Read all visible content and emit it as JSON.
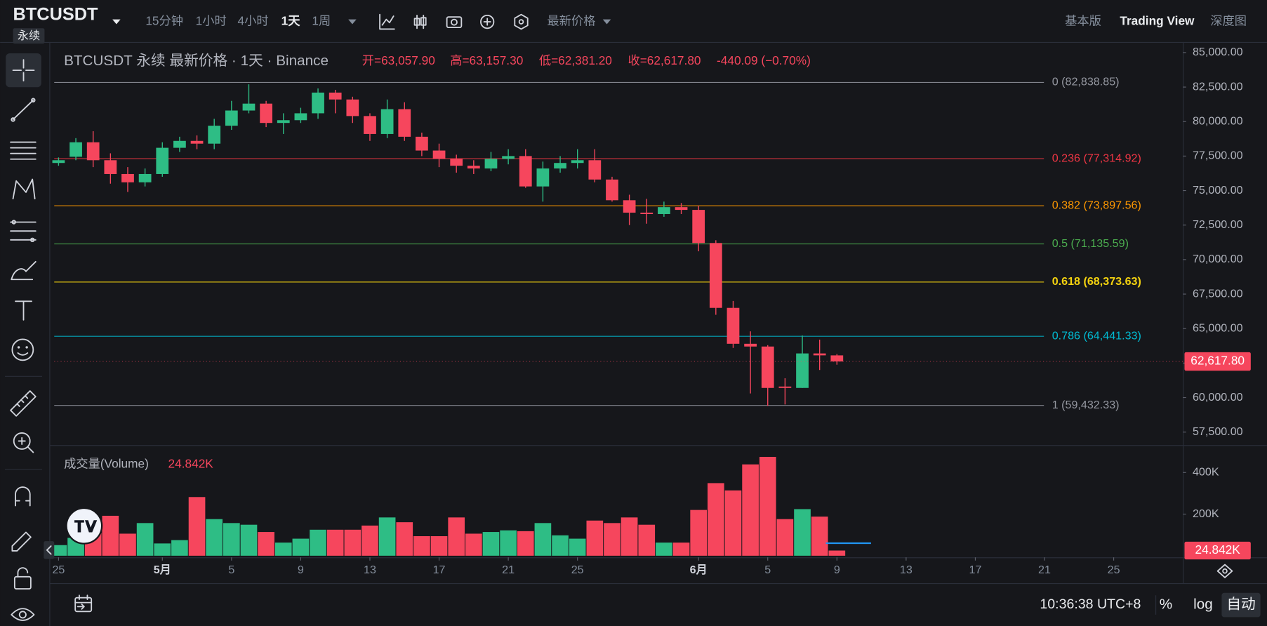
{
  "header": {
    "symbol": "BTCUSDT",
    "badge": "永续",
    "intervals": [
      "15分钟",
      "1小时",
      "4小时",
      "1天",
      "1周"
    ],
    "active_interval": 3,
    "price_type": "最新价格",
    "views": [
      "基本版",
      "Trading View",
      "深度图"
    ],
    "active_view": 1
  },
  "chart_data": {
    "type": "candlestick",
    "legend": {
      "title": "BTCUSDT 永续 最新价格 · 1天 · Binance",
      "ohlc": [
        "开=63,057.90",
        "高=63,157.30",
        "低=62,381.20",
        "收=62,617.80"
      ],
      "change": "-440.09 (−0.70%)"
    },
    "up_color": "#2ebd85",
    "down_color": "#f6465d",
    "open": [
      77000,
      77450,
      78500,
      77200,
      76200,
      75600,
      76200,
      78100,
      78600,
      78400,
      79700,
      80800,
      81300,
      79900,
      80100,
      80600,
      82100,
      81600,
      80400,
      79100,
      80900,
      78900,
      77900,
      77300,
      76800,
      76600,
      77300,
      77500,
      75300,
      76600,
      77000,
      77200,
      75800,
      74300,
      73400,
      73300,
      73800,
      73600,
      71200,
      66500,
      63900,
      63700,
      60800,
      60700,
      63200,
      63057.9
    ],
    "high": [
      77400,
      78800,
      79300,
      77700,
      76700,
      76600,
      78500,
      78900,
      79000,
      80200,
      81500,
      82700,
      81500,
      80600,
      81000,
      82400,
      82300,
      81800,
      80600,
      81600,
      81400,
      79200,
      78400,
      77600,
      77200,
      77800,
      78000,
      78000,
      77100,
      77500,
      78000,
      78000,
      76000,
      74700,
      74400,
      74200,
      74100,
      73900,
      71400,
      67000,
      64800,
      63800,
      61400,
      64500,
      64200,
      63157.3
    ],
    "low": [
      76800,
      77200,
      76700,
      75500,
      74900,
      75300,
      76000,
      77800,
      78000,
      78000,
      79400,
      80600,
      79600,
      79100,
      79900,
      80200,
      80600,
      79900,
      78600,
      78800,
      78600,
      77500,
      76700,
      76300,
      76200,
      76400,
      76900,
      75200,
      74200,
      76300,
      76600,
      75600,
      74200,
      72500,
      72600,
      73100,
      73300,
      70600,
      66000,
      63600,
      60300,
      59400,
      59500,
      60700,
      62000,
      62381.2
    ],
    "close": [
      77200,
      78500,
      77200,
      76200,
      75600,
      76200,
      78100,
      78600,
      78400,
      79700,
      80800,
      81300,
      79900,
      80100,
      80600,
      82100,
      81600,
      80400,
      79100,
      80900,
      78900,
      77900,
      77300,
      76800,
      76600,
      77300,
      77500,
      75300,
      76600,
      77000,
      77200,
      75800,
      74300,
      73400,
      73300,
      73800,
      73600,
      71200,
      66500,
      63900,
      63700,
      60700,
      60700,
      63200,
      63060,
      62617.8
    ],
    "xlim": [
      -0.25,
      65
    ],
    "xticks": [
      {
        "value": 0,
        "label": "25"
      },
      {
        "value": 6,
        "label": "5月"
      },
      {
        "value": 10,
        "label": "5"
      },
      {
        "value": 14,
        "label": "9"
      },
      {
        "value": 18,
        "label": "13"
      },
      {
        "value": 22,
        "label": "17"
      },
      {
        "value": 26,
        "label": "21"
      },
      {
        "value": 30,
        "label": "25"
      },
      {
        "value": 37,
        "label": "6月"
      },
      {
        "value": 41,
        "label": "5"
      },
      {
        "value": 45,
        "label": "9"
      },
      {
        "value": 49,
        "label": "13"
      },
      {
        "value": 53,
        "label": "17"
      },
      {
        "value": 57,
        "label": "21"
      },
      {
        "value": 61,
        "label": "25"
      }
    ],
    "ylim": [
      56560,
      85590
    ],
    "yticks": [
      {
        "value": 85000,
        "label": "85,000.00"
      },
      {
        "value": 82500,
        "label": "82,500.00"
      },
      {
        "value": 80000,
        "label": "80,000.00"
      },
      {
        "value": 77500,
        "label": "77,500.00"
      },
      {
        "value": 75000,
        "label": "75,000.00"
      },
      {
        "value": 72500,
        "label": "72,500.00"
      },
      {
        "value": 70000,
        "label": "70,000.00"
      },
      {
        "value": 67500,
        "label": "67,500.00"
      },
      {
        "value": 65000,
        "label": "65,000.00"
      },
      {
        "value": 62500,
        "label": "62,500.00"
      },
      {
        "value": 60000,
        "label": "60,000.00"
      },
      {
        "value": 57500,
        "label": "57,500.00"
      }
    ],
    "fib_levels": [
      {
        "price": 82838.85,
        "label": "0 (82,838.85)",
        "color": "#9598a1"
      },
      {
        "price": 77314.92,
        "label": "0.236 (77,314.92)",
        "color": "#f23645"
      },
      {
        "price": 73897.56,
        "label": "0.382 (73,897.56)",
        "color": "#ff9800"
      },
      {
        "price": 71135.59,
        "label": "0.5 (71,135.59)",
        "color": "#4caf50"
      },
      {
        "price": 68373.63,
        "label": "0.618 (68,373.63)",
        "color": "#f5d30f"
      },
      {
        "price": 64441.33,
        "label": "0.786 (64,441.33)",
        "color": "#00bcd4"
      },
      {
        "price": 59432.33,
        "label": "1 (59,432.33)",
        "color": "#9598a1"
      }
    ],
    "last_price": {
      "value": 62617.8,
      "label": "62,617.80"
    },
    "volume": {
      "title": "成交量(Volume)",
      "values": [
        51000,
        86000,
        110000,
        192000,
        106000,
        157000,
        59000,
        75000,
        282000,
        176000,
        157000,
        149000,
        114000,
        63000,
        82000,
        125000,
        125000,
        125000,
        145000,
        184000,
        161000,
        94000,
        94000,
        184000,
        106000,
        114000,
        122000,
        118000,
        157000,
        98000,
        82000,
        169000,
        157000,
        184000,
        149000,
        63000,
        63000,
        220000,
        349000,
        314000,
        439000,
        475000,
        176000,
        224000,
        188000,
        24842
      ],
      "last_label": "24.842K",
      "ylim": [
        0,
        528000
      ],
      "yticks": [
        {
          "value": 400000,
          "label": "400K"
        },
        {
          "value": 200000,
          "label": "200K"
        }
      ]
    }
  },
  "footer": {
    "time": "10:36:38 UTC+8",
    "buttons": [
      "%",
      "log",
      "自动"
    ]
  }
}
